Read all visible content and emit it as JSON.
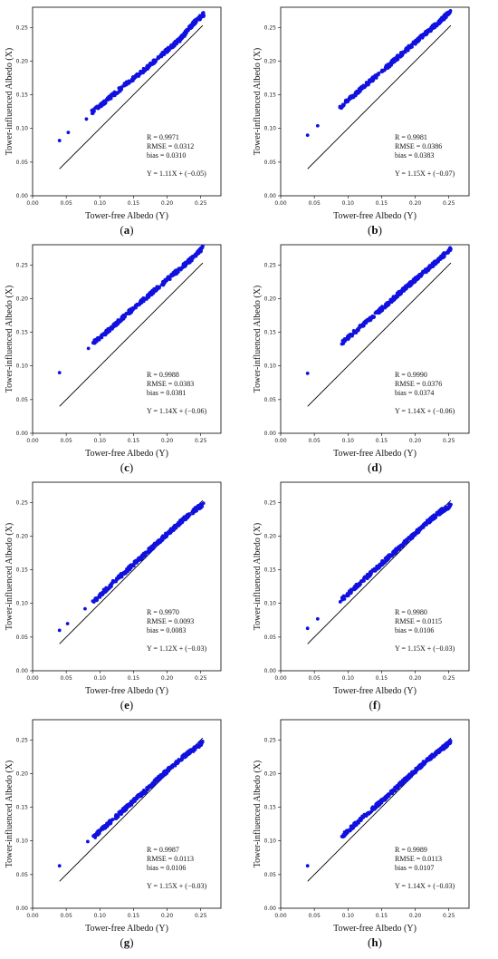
{
  "x_axis_label": "Tower-free Albedo (Y)",
  "y_axis_label": "Tower-influenced Albedo (X)",
  "tick_labels": [
    "0.00",
    "0.05",
    "0.10",
    "0.15",
    "0.20",
    "0.25"
  ],
  "colors": {
    "points": "#1010e0",
    "reference_line": "#000000",
    "axes": "#000000"
  },
  "chart_data": [
    {
      "panel": "a",
      "type": "scatter",
      "xlabel": "Tower-free Albedo (Y)",
      "ylabel": "Tower-influenced Albedo (X)",
      "xlim": [
        0,
        0.28
      ],
      "ylim": [
        0,
        0.28
      ],
      "reference_line": "1:1",
      "stats": [
        "R = 0.9971",
        "RMSE = 0.0312",
        "bias = 0.0310"
      ],
      "equation": "Y = 1.11X + (−0.05)",
      "fit": {
        "slope": 1.11,
        "intercept": -0.05
      },
      "outliers": [
        [
          0.04,
          0.082
        ],
        [
          0.053,
          0.094
        ],
        [
          0.08,
          0.114
        ]
      ],
      "x": [
        0.088,
        0.1,
        0.12,
        0.14,
        0.16,
        0.18,
        0.2,
        0.22,
        0.24,
        0.255
      ],
      "y": [
        0.124,
        0.134,
        0.15,
        0.167,
        0.182,
        0.199,
        0.216,
        0.233,
        0.257,
        0.27
      ]
    },
    {
      "panel": "b",
      "type": "scatter",
      "xlabel": "Tower-free Albedo (Y)",
      "ylabel": "Tower-influenced Albedo (X)",
      "xlim": [
        0,
        0.28
      ],
      "ylim": [
        0,
        0.28
      ],
      "reference_line": "1:1",
      "stats": [
        "R = 0.9981",
        "RMSE = 0.0386",
        "bias = 0.0383"
      ],
      "equation": "Y = 1.15X + (−0.07)",
      "fit": {
        "slope": 1.15,
        "intercept": -0.07
      },
      "outliers": [
        [
          0.04,
          0.09
        ],
        [
          0.055,
          0.104
        ]
      ],
      "x": [
        0.088,
        0.1,
        0.12,
        0.14,
        0.16,
        0.18,
        0.2,
        0.22,
        0.24,
        0.253
      ],
      "y": [
        0.131,
        0.142,
        0.159,
        0.176,
        0.193,
        0.211,
        0.228,
        0.245,
        0.262,
        0.275
      ]
    },
    {
      "panel": "c",
      "type": "scatter",
      "xlabel": "Tower-free Albedo (Y)",
      "ylabel": "Tower-influenced Albedo (X)",
      "xlim": [
        0,
        0.28
      ],
      "ylim": [
        0,
        0.28
      ],
      "reference_line": "1:1",
      "stats": [
        "R = 0.9988",
        "RMSE = 0.0383",
        "bias = 0.0381"
      ],
      "equation": "Y = 1.14X + (−0.06)",
      "fit": {
        "slope": 1.14,
        "intercept": -0.06
      },
      "outliers": [
        [
          0.04,
          0.09
        ],
        [
          0.083,
          0.126
        ]
      ],
      "x": [
        0.09,
        0.1,
        0.12,
        0.14,
        0.16,
        0.18,
        0.2,
        0.22,
        0.24,
        0.253
      ],
      "y": [
        0.134,
        0.142,
        0.159,
        0.177,
        0.194,
        0.211,
        0.228,
        0.245,
        0.262,
        0.275
      ]
    },
    {
      "panel": "d",
      "type": "scatter",
      "xlabel": "Tower-free Albedo (Y)",
      "ylabel": "Tower-influenced Albedo (X)",
      "xlim": [
        0,
        0.28
      ],
      "ylim": [
        0,
        0.28
      ],
      "reference_line": "1:1",
      "stats": [
        "R = 0.9990",
        "RMSE = 0.0376",
        "bias = 0.0374"
      ],
      "equation": "Y = 1.14X + (−0.06)",
      "fit": {
        "slope": 1.14,
        "intercept": -0.06
      },
      "outliers": [
        [
          0.04,
          0.089
        ]
      ],
      "x": [
        0.09,
        0.1,
        0.12,
        0.14,
        0.16,
        0.18,
        0.2,
        0.22,
        0.24,
        0.253
      ],
      "y": [
        0.133,
        0.142,
        0.159,
        0.176,
        0.193,
        0.211,
        0.228,
        0.245,
        0.262,
        0.275
      ]
    },
    {
      "panel": "e",
      "type": "scatter",
      "xlabel": "Tower-free Albedo (Y)",
      "ylabel": "Tower-influenced Albedo (X)",
      "xlim": [
        0,
        0.28
      ],
      "ylim": [
        0,
        0.28
      ],
      "reference_line": "1:1",
      "stats": [
        "R = 0.9970",
        "RMSE = 0.0093",
        "bias = 0.0083"
      ],
      "equation": "Y = 1.12X + (−0.03)",
      "fit": {
        "slope": 1.12,
        "intercept": -0.03
      },
      "outliers": [
        [
          0.04,
          0.06
        ],
        [
          0.052,
          0.07
        ],
        [
          0.078,
          0.092
        ]
      ],
      "x": [
        0.088,
        0.1,
        0.12,
        0.14,
        0.16,
        0.18,
        0.2,
        0.22,
        0.24,
        0.255
      ],
      "y": [
        0.1,
        0.112,
        0.131,
        0.149,
        0.167,
        0.185,
        0.203,
        0.221,
        0.238,
        0.248
      ]
    },
    {
      "panel": "f",
      "type": "scatter",
      "xlabel": "Tower-free Albedo (Y)",
      "ylabel": "Tower-influenced Albedo (X)",
      "xlim": [
        0,
        0.28
      ],
      "ylim": [
        0,
        0.28
      ],
      "reference_line": "1:1",
      "stats": [
        "R = 0.9980",
        "RMSE = 0.0115",
        "bias = 0.0106"
      ],
      "equation": "Y = 1.15X + (−0.03)",
      "fit": {
        "slope": 1.15,
        "intercept": -0.03
      },
      "outliers": [
        [
          0.04,
          0.063
        ],
        [
          0.055,
          0.077
        ]
      ],
      "x": [
        0.088,
        0.1,
        0.12,
        0.14,
        0.16,
        0.18,
        0.2,
        0.22,
        0.24,
        0.253
      ],
      "y": [
        0.103,
        0.114,
        0.132,
        0.15,
        0.168,
        0.186,
        0.204,
        0.222,
        0.238,
        0.246
      ]
    },
    {
      "panel": "g",
      "type": "scatter",
      "xlabel": "Tower-free Albedo (Y)",
      "ylabel": "Tower-influenced Albedo (X)",
      "xlim": [
        0,
        0.28
      ],
      "ylim": [
        0,
        0.28
      ],
      "reference_line": "1:1",
      "stats": [
        "R = 0.9987",
        "RMSE = 0.0113",
        "bias = 0.0106"
      ],
      "equation": "Y = 1.15X + (−0.03)",
      "fit": {
        "slope": 1.15,
        "intercept": -0.03
      },
      "outliers": [
        [
          0.04,
          0.063
        ],
        [
          0.082,
          0.099
        ]
      ],
      "x": [
        0.09,
        0.1,
        0.12,
        0.14,
        0.16,
        0.18,
        0.2,
        0.22,
        0.24,
        0.253
      ],
      "y": [
        0.105,
        0.114,
        0.132,
        0.15,
        0.168,
        0.186,
        0.204,
        0.222,
        0.236,
        0.247
      ]
    },
    {
      "panel": "h",
      "type": "scatter",
      "xlabel": "Tower-free Albedo (Y)",
      "ylabel": "Tower-influenced Albedo (X)",
      "xlim": [
        0,
        0.28
      ],
      "ylim": [
        0,
        0.28
      ],
      "reference_line": "1:1",
      "stats": [
        "R = 0.9989",
        "RMSE = 0.0113",
        "bias = 0.0107"
      ],
      "equation": "Y = 1.14X + (−0.03)",
      "fit": {
        "slope": 1.14,
        "intercept": -0.03
      },
      "outliers": [
        [
          0.04,
          0.063
        ]
      ],
      "x": [
        0.09,
        0.1,
        0.12,
        0.14,
        0.16,
        0.18,
        0.2,
        0.22,
        0.24,
        0.253
      ],
      "y": [
        0.106,
        0.115,
        0.133,
        0.15,
        0.168,
        0.186,
        0.204,
        0.222,
        0.237,
        0.248
      ]
    }
  ]
}
